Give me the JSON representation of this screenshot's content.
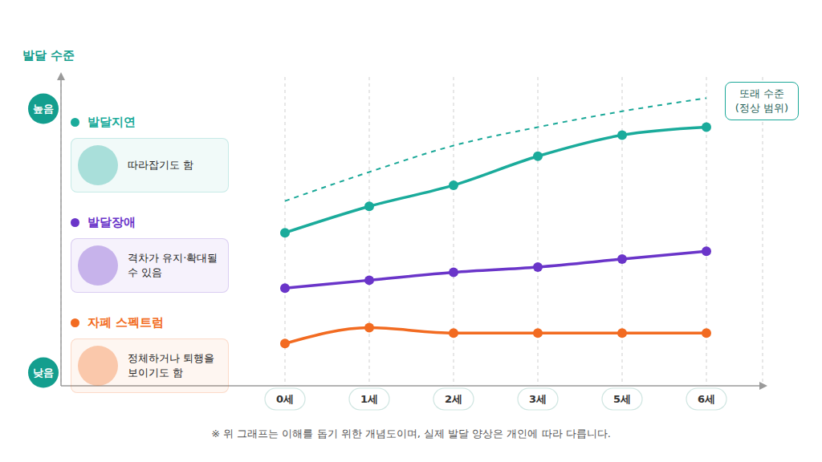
{
  "chart_data": {
    "type": "line",
    "y_label": "발달 수준",
    "categories": [
      "0세",
      "1세",
      "2세",
      "3세",
      "5세",
      "6세"
    ],
    "series": [
      {
        "name": "또래 수준 (정상 범위)",
        "color": "#1aa898",
        "values": [
          65,
          76,
          86,
          93,
          99,
          104
        ],
        "line_style": "dashed",
        "marker": "none"
      },
      {
        "name": "발달지연",
        "color": "#1aab9b",
        "values": [
          53,
          63,
          71,
          82,
          90,
          93
        ],
        "line_style": "solid",
        "marker": "circle",
        "annotation": "따라잡기도 함"
      },
      {
        "name": "발달장애",
        "color": "#6a35c9",
        "values": [
          32,
          35,
          38,
          40,
          43,
          46
        ],
        "line_style": "solid",
        "marker": "circle",
        "annotation": "격차가 유지·확대될 수 있음"
      },
      {
        "name": "자폐 스펙트럼",
        "color": "#f26b21",
        "values": [
          11,
          17,
          15,
          15,
          15,
          15
        ],
        "line_style": "solid",
        "marker": "circle",
        "annotation": "정체하거나 퇴행을 보이기도 함"
      }
    ],
    "ylim": [
      -5,
      112
    ],
    "yticks": [
      {
        "value": 0,
        "label": "낮음"
      },
      {
        "value": 100,
        "label": "높음"
      }
    ],
    "grid": true,
    "legend": "left",
    "footnote": "※ 위 그래프는 이해를 돕기 위한 개념도이며, 실제 발달 양상은 개인에 따라 다릅니다."
  }
}
